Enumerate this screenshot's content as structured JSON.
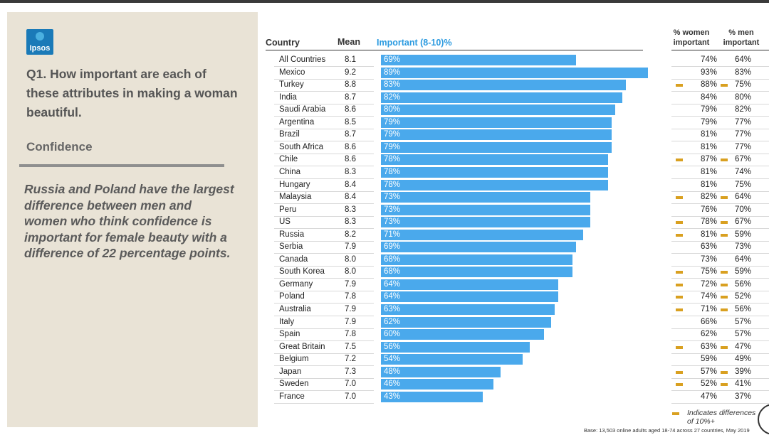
{
  "logo_text": "Ipsos",
  "question": "Q1. How important are each of these attributes in making a woman beautiful.",
  "topic": "Confidence",
  "finding": "Russia and Poland have the largest difference between men and women who think confidence is important for female beauty with a difference of 22 percentage points.",
  "headers": {
    "country": "Country",
    "mean": "Mean",
    "important": "Important (8-10)%",
    "women_l1": "% women",
    "women_l2": "important",
    "men_l1": "% men",
    "men_l2": "important"
  },
  "legend": {
    "line1": "Indicates differences",
    "line2": "of 10%+"
  },
  "base_note": "Base: 13,503 online adults aged 18-74 across 27 countries, May 2019",
  "colors": {
    "bar": "#4aa9ec",
    "marker": "#d9a020",
    "panel": "#e9e3d6"
  },
  "chart_data": {
    "type": "bar",
    "orientation": "horizontal",
    "xlim": [
      0,
      100
    ],
    "categories": [
      "All Countries",
      "Mexico",
      "Turkey",
      "India",
      "Saudi Arabia",
      "Argentina",
      "Brazil",
      "South Africa",
      "Chile",
      "China",
      "Hungary",
      "Malaysia",
      "Peru",
      "US",
      "Russia",
      "Serbia",
      "Canada",
      "South Korea",
      "Germany",
      "Poland",
      "Australia",
      "Italy",
      "Spain",
      "Great Britain",
      "Belgium",
      "Japan",
      "Sweden",
      "France"
    ],
    "mean": [
      "8.1",
      "9.2",
      "8.8",
      "8.7",
      "8.6",
      "8.5",
      "8.7",
      "8.6",
      "8.6",
      "8.3",
      "8.4",
      "8.4",
      "8.3",
      "8.3",
      "8.2",
      "7.9",
      "8.0",
      "8.0",
      "7.9",
      "7.8",
      "7.9",
      "7.9",
      "7.8",
      "7.5",
      "7.2",
      "7.3",
      "7.0",
      "7.0"
    ],
    "series": [
      {
        "name": "Important (8-10)%",
        "values": [
          69,
          89,
          83,
          82,
          80,
          79,
          79,
          79,
          78,
          78,
          78,
          73,
          73,
          73,
          71,
          69,
          68,
          68,
          64,
          64,
          63,
          62,
          60,
          56,
          54,
          48,
          46,
          43
        ]
      },
      {
        "name": "% women important",
        "values": [
          74,
          93,
          88,
          84,
          79,
          79,
          81,
          81,
          87,
          81,
          81,
          82,
          76,
          78,
          81,
          63,
          73,
          75,
          72,
          74,
          71,
          66,
          62,
          63,
          59,
          57,
          52,
          47
        ]
      },
      {
        "name": "% men important",
        "values": [
          64,
          83,
          75,
          80,
          82,
          77,
          77,
          77,
          67,
          74,
          75,
          64,
          70,
          67,
          59,
          73,
          64,
          59,
          56,
          52,
          56,
          57,
          57,
          47,
          49,
          39,
          41,
          37
        ]
      }
    ],
    "difference_flag": [
      false,
      false,
      true,
      false,
      false,
      false,
      false,
      false,
      true,
      false,
      false,
      true,
      false,
      true,
      true,
      false,
      false,
      true,
      true,
      true,
      true,
      false,
      false,
      true,
      false,
      true,
      true,
      false
    ]
  }
}
